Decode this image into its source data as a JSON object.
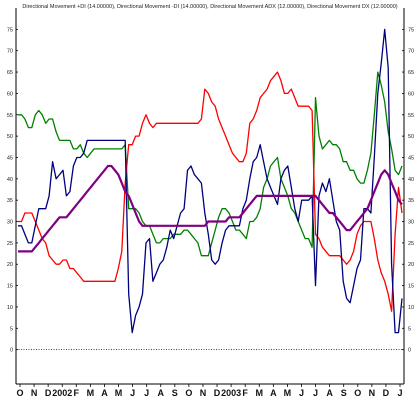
{
  "chart_data": {
    "type": "line",
    "title": "Directional Movement +DI (14.00000), Directional Movement -DI (14.00000), Directional Movement ADX (12.00000), Directional Movement DX (12.00000)",
    "xlabel": "",
    "ylabel": "",
    "ylim": [
      -5,
      80
    ],
    "yticks": [
      0,
      5,
      10,
      15,
      20,
      25,
      30,
      35,
      40,
      45,
      50,
      55,
      60,
      65,
      70,
      75
    ],
    "grid": false,
    "x_labels": [
      "O",
      "N",
      "D",
      "2002",
      "F",
      "M",
      "A",
      "M",
      "J",
      "J",
      "A",
      "S",
      "O",
      "N",
      "D",
      "2003",
      "F",
      "M",
      "A",
      "M",
      "J",
      "J",
      "A",
      "S",
      "O",
      "N",
      "D",
      "J"
    ],
    "x_count": 112,
    "series": [
      {
        "color": "#008000",
        "values": [
          55,
          55,
          54,
          52,
          52,
          55,
          56,
          55,
          53,
          54,
          54,
          51,
          49,
          49,
          49,
          49,
          47,
          47,
          48,
          46,
          45,
          46,
          47,
          47,
          47,
          47,
          47,
          47,
          47,
          47,
          47,
          48,
          33,
          33,
          33,
          32,
          30,
          29,
          29,
          27,
          25,
          25,
          26,
          26,
          26,
          27,
          27,
          27,
          28,
          28,
          27,
          26,
          25,
          22,
          22,
          22,
          25,
          28,
          31,
          33,
          33,
          32,
          30,
          28,
          28,
          27,
          26,
          30,
          30,
          31,
          33,
          38,
          40,
          43,
          44,
          45,
          40,
          38,
          36,
          33,
          32,
          30,
          28,
          26,
          26,
          24,
          59,
          50,
          47,
          48,
          49,
          48,
          48,
          47,
          44,
          44,
          42,
          42,
          40,
          39,
          39,
          42,
          46,
          55,
          65,
          62,
          58,
          51,
          47,
          42,
          41,
          43
        ]
      },
      {
        "color": "#ff0000",
        "values": [
          30,
          30,
          32,
          32,
          32,
          30,
          28,
          26,
          25,
          22,
          21,
          20,
          20,
          21,
          21,
          19,
          19,
          18,
          17,
          16,
          16,
          16,
          16,
          16,
          16,
          16,
          16,
          16,
          16,
          19,
          23,
          39,
          48,
          48,
          50,
          50,
          53,
          55,
          53,
          52,
          53,
          53,
          53,
          53,
          53,
          53,
          53,
          53,
          53,
          53,
          53,
          53,
          53,
          54,
          61,
          60,
          58,
          57,
          54,
          52,
          50,
          48,
          46,
          45,
          44,
          44,
          46,
          53,
          54,
          56,
          59,
          60,
          61,
          63,
          64,
          65,
          63,
          60,
          60,
          61,
          59,
          57,
          57,
          57,
          57,
          56,
          27,
          26,
          24,
          23,
          22,
          22,
          22,
          22,
          21,
          20,
          21,
          23,
          27,
          29,
          30,
          30,
          30,
          26,
          21,
          18,
          16,
          13,
          9,
          27,
          38,
          32
        ]
      },
      {
        "color": "#000080",
        "values": [
          29,
          29,
          27,
          25,
          25,
          29,
          33,
          33,
          33,
          36,
          44,
          40,
          41,
          42,
          36,
          37,
          43,
          45,
          45,
          46,
          49,
          49,
          49,
          49,
          49,
          49,
          49,
          49,
          49,
          49,
          49,
          49,
          13,
          4,
          8,
          10,
          13,
          25,
          26,
          16,
          18,
          20,
          21,
          24,
          28,
          26,
          29,
          32,
          33,
          42,
          43,
          41,
          40,
          39,
          32,
          27,
          21,
          20,
          21,
          25,
          28,
          29,
          29,
          29,
          29,
          33,
          35,
          40,
          44,
          45,
          48,
          44,
          40,
          38,
          36,
          34,
          40,
          42,
          43,
          38,
          33,
          30,
          35,
          35,
          35,
          36,
          15,
          36,
          39,
          37,
          40,
          35,
          30,
          28,
          16,
          12,
          11,
          15,
          19,
          21,
          33,
          33,
          32,
          45,
          60,
          67,
          75,
          66,
          20,
          4,
          4,
          12
        ]
      },
      {
        "color": "#800080",
        "values": [
          23,
          23,
          23,
          23,
          23,
          24,
          25,
          26,
          27,
          28,
          29,
          30,
          31,
          31,
          31,
          32,
          33,
          34,
          35,
          36,
          37,
          38,
          39,
          40,
          41,
          42,
          43,
          43,
          42,
          41,
          39,
          37,
          36,
          34,
          32,
          30,
          29,
          29,
          29,
          29,
          29,
          29,
          29,
          29,
          29,
          29,
          29,
          29,
          29,
          29,
          29,
          29,
          29,
          29,
          29,
          30,
          30,
          30,
          30,
          30,
          30,
          31,
          31,
          31,
          31,
          32,
          33,
          34,
          35,
          36,
          36,
          36,
          36,
          36,
          36,
          36,
          36,
          36,
          36,
          36,
          36,
          36,
          36,
          36,
          36,
          36,
          36,
          35,
          34,
          33,
          32,
          32,
          31,
          30,
          29,
          28,
          28,
          29,
          30,
          31,
          32,
          33,
          35,
          37,
          39,
          41,
          42,
          41,
          39,
          37,
          35,
          34
        ]
      }
    ]
  }
}
